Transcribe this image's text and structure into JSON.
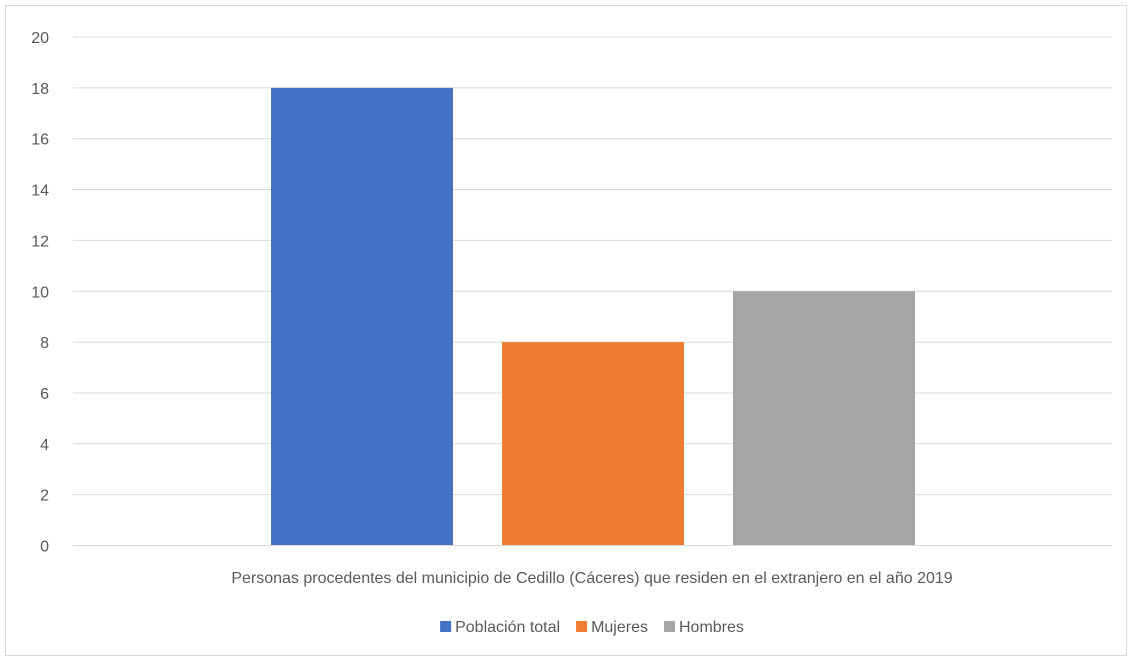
{
  "chart_data": {
    "type": "bar",
    "title": "",
    "xlabel": "",
    "ylabel": "",
    "category_label": "Personas procedentes del municipio de Cedillo (Cáceres) que residen en el extranjero en el año 2019",
    "ylim": [
      0,
      20
    ],
    "yticks": [
      "0",
      "2",
      "4",
      "6",
      "8",
      "10",
      "12",
      "14",
      "16",
      "18",
      "20"
    ],
    "grid": true,
    "legend_position": "bottom",
    "series": [
      {
        "name": "Población total",
        "value": 18,
        "color": "#4472C4"
      },
      {
        "name": "Mujeres",
        "value": 8,
        "color": "#ED7D31"
      },
      {
        "name": "Hombres",
        "value": 10,
        "color": "#A5A5A5"
      }
    ]
  }
}
